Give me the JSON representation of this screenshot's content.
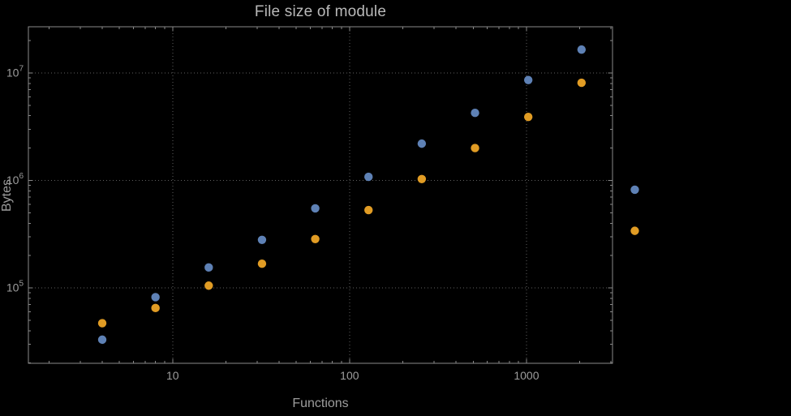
{
  "figure": {
    "background": "#000000",
    "title_color": "#b9b9b9",
    "label_color": "#9d9d9d",
    "tick_label_color": "#9d9d9d",
    "frame_color": "#8a8a8a",
    "grid_color": "#5f5f5f"
  },
  "chart_data": {
    "type": "scatter",
    "title": "File size of module",
    "xlabel": "Functions",
    "ylabel": "Bytes",
    "x_scale": "log",
    "y_scale": "log",
    "grid": "dotted",
    "legend": "none",
    "xlim": [
      1.53,
      3065
    ],
    "ylim": [
      19900,
      26900000
    ],
    "x_ticks": [
      10,
      100,
      1000
    ],
    "x_tick_labels": [
      "10",
      "100",
      "1000"
    ],
    "y_ticks": [
      100000,
      1000000,
      10000000
    ],
    "y_tick_labels": [
      "10^5",
      "10^6",
      "10^7"
    ],
    "x": [
      4,
      8,
      16,
      32,
      64,
      128,
      256,
      512,
      1024,
      2048,
      4096
    ],
    "series": [
      {
        "name": "blue",
        "color": "#5E81B5",
        "values": [
          33000,
          82000,
          155000,
          280000,
          550000,
          1080000,
          2200000,
          4250000,
          8600000,
          16500000,
          820000
        ]
      },
      {
        "name": "orange",
        "color": "#E19C24",
        "values": [
          47000,
          65000,
          105000,
          168000,
          285000,
          530000,
          1030000,
          2000000,
          3900000,
          8100000,
          340000
        ]
      }
    ]
  }
}
